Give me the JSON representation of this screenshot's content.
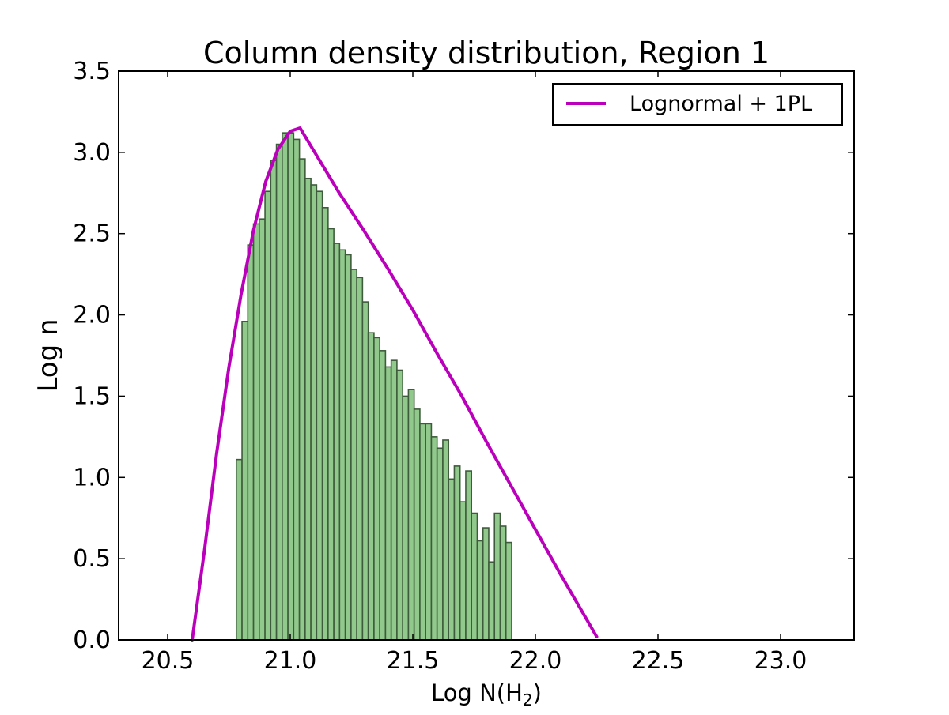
{
  "chart_data": {
    "type": "bar",
    "title": "Column density distribution, Region 1",
    "xlabel": "Log N(H",
    "xlabel_subscript": "2",
    "xlabel_close": ")",
    "ylabel": "Log n",
    "xlim": [
      20.3,
      23.3
    ],
    "ylim": [
      0.0,
      3.5
    ],
    "xticks": [
      20.5,
      21.0,
      21.5,
      22.0,
      22.5,
      23.0
    ],
    "xtick_labels": [
      "20.5",
      "21.0",
      "21.5",
      "22.0",
      "22.5",
      "23.0"
    ],
    "yticks": [
      0.0,
      0.5,
      1.0,
      1.5,
      2.0,
      2.5,
      3.0,
      3.5
    ],
    "ytick_labels": [
      "0.0",
      "0.5",
      "1.0",
      "1.5",
      "2.0",
      "2.5",
      "3.0",
      "3.5"
    ],
    "grid": false,
    "legend_position": "top-right",
    "histogram": {
      "bin_start": 20.78,
      "bin_width": 0.0234,
      "values": [
        1.11,
        1.96,
        2.43,
        2.56,
        2.59,
        2.76,
        2.95,
        3.05,
        3.12,
        3.12,
        3.08,
        2.96,
        2.84,
        2.8,
        2.76,
        2.66,
        2.53,
        2.44,
        2.4,
        2.37,
        2.28,
        2.23,
        2.08,
        1.89,
        1.86,
        1.78,
        1.68,
        1.72,
        1.66,
        1.5,
        1.54,
        1.42,
        1.33,
        1.33,
        1.25,
        1.18,
        1.23,
        0.99,
        1.07,
        0.85,
        1.04,
        0.78,
        0.61,
        0.69,
        0.48,
        0.78,
        0.7,
        0.6
      ],
      "fill_color": "#91c98c",
      "edge_color": "#3e5c3b"
    },
    "series": [
      {
        "name": "Lognormal + 1PL",
        "color": "#bb00bb",
        "x": [
          20.6,
          20.65,
          20.7,
          20.75,
          20.8,
          20.85,
          20.9,
          20.95,
          21.0,
          21.04,
          21.1,
          21.2,
          21.3,
          21.4,
          21.5,
          21.6,
          21.7,
          21.8,
          21.9,
          22.0,
          22.1,
          22.2,
          22.25
        ],
        "y": [
          0.0,
          0.55,
          1.15,
          1.68,
          2.13,
          2.52,
          2.82,
          3.02,
          3.13,
          3.15,
          3.0,
          2.75,
          2.52,
          2.28,
          2.03,
          1.76,
          1.5,
          1.22,
          0.95,
          0.68,
          0.41,
          0.15,
          0.02
        ]
      }
    ]
  }
}
